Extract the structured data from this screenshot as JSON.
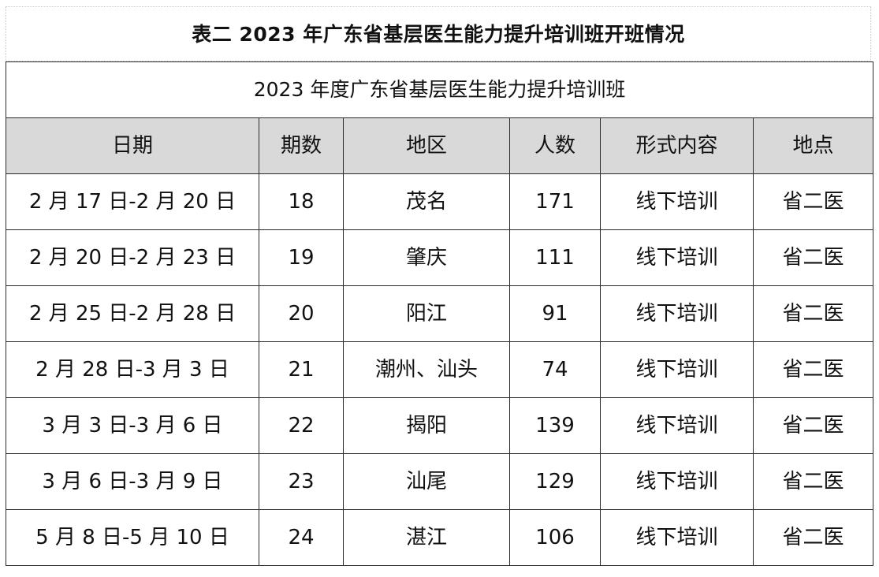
{
  "title": "表二  2023 年广东省基层医生能力提升培训班开班情况",
  "table": {
    "caption": "2023 年度广东省基层医生能力提升培训班",
    "headers": [
      "日期",
      "期数",
      "地区",
      "人数",
      "形式内容",
      "地点"
    ],
    "rows": [
      [
        "2 月 17 日-2 月 20 日",
        "18",
        "茂名",
        "171",
        "线下培训",
        "省二医"
      ],
      [
        "2 月 20 日-2 月 23 日",
        "19",
        "肇庆",
        "111",
        "线下培训",
        "省二医"
      ],
      [
        "2 月 25 日-2 月 28 日",
        "20",
        "阳江",
        "91",
        "线下培训",
        "省二医"
      ],
      [
        "2 月 28 日-3 月 3 日",
        "21",
        "潮州、汕头",
        "74",
        "线下培训",
        "省二医"
      ],
      [
        "3 月 3 日-3 月 6 日",
        "22",
        "揭阳",
        "139",
        "线下培训",
        "省二医"
      ],
      [
        "3 月 6 日-3 月 9 日",
        "23",
        "汕尾",
        "129",
        "线下培训",
        "省二医"
      ],
      [
        "5 月 8 日-5 月 10 日",
        "24",
        "湛江",
        "106",
        "线下培训",
        "省二医"
      ]
    ]
  },
  "colors": {
    "header_bg": "#d9d9d9",
    "border": "#2b2b2b",
    "text": "#111111"
  }
}
